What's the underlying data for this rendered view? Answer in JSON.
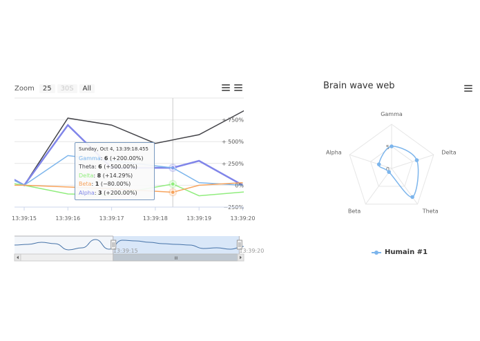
{
  "range_selector": {
    "label": "Zoom",
    "buttons": [
      {
        "label": "25",
        "disabled": false
      },
      {
        "label": "30S",
        "disabled": true
      },
      {
        "label": "All",
        "disabled": false
      }
    ]
  },
  "radar_title": "Brain wave web",
  "tooltip": {
    "title": "Sunday, Oct 4, 13:39:18.455",
    "rows": [
      {
        "name": "Gamma",
        "value": "6",
        "change": "(+200.00%)",
        "color": "#7cb5ec"
      },
      {
        "name": "Theta",
        "value": "6",
        "change": "(+500.00%)",
        "color": "#434348"
      },
      {
        "name": "Delta",
        "value": "8",
        "change": "(+14.29%)",
        "color": "#90ed7d"
      },
      {
        "name": "Beta",
        "value": "1",
        "change": "(−80.00%)",
        "color": "#f7a35c"
      },
      {
        "name": "Alpha",
        "value": "3",
        "change": "(+200.00%)",
        "color": "#8085e9"
      }
    ]
  },
  "navigator": {
    "scrollbar_grip": "III",
    "series_values": [
      0.5,
      0.55,
      0.7,
      0.6,
      0.15,
      0.3,
      0.9,
      0.2,
      0.85,
      0.8,
      0.7,
      0.6,
      0.55,
      0.5,
      0.25,
      0.3,
      0.2,
      0.4
    ],
    "selected_range": [
      0.43,
      0.98
    ],
    "labels": [
      {
        "text": "13:39:15",
        "pos": 0.43
      },
      {
        "text": "13:39:20",
        "pos": 0.98
      }
    ]
  },
  "chart_data": [
    {
      "type": "line",
      "compare": "percent",
      "x_ticks": [
        "13:39:15",
        "13:39:16",
        "13:39:17",
        "13:39:18",
        "13:39:19",
        "13:39:20"
      ],
      "y_ticks": [
        "+ 750%",
        "+ 500%",
        "+ 250%",
        "0%",
        "−250%"
      ],
      "y_tick_values": [
        750,
        500,
        250,
        0,
        -250
      ],
      "ylim": [
        -250,
        1000
      ],
      "xlim": [
        -0.25,
        5.2
      ],
      "hover_x": 3.4,
      "series": [
        {
          "name": "Theta",
          "color": "#434348",
          "x": [
            0,
            1,
            2,
            3,
            4,
            5.2
          ],
          "y": [
            0,
            770,
            690,
            480,
            580,
            900
          ]
        },
        {
          "name": "Alpha",
          "color": "#8085e9",
          "width": 2.5,
          "x": [
            -0.25,
            0,
            1,
            2,
            3.4,
            4,
            5
          ],
          "y": [
            70,
            0,
            690,
            200,
            200,
            280,
            0
          ],
          "hover_y": 200
        },
        {
          "name": "Gamma",
          "color": "#7cb5ec",
          "x": [
            -0.25,
            0,
            1,
            2,
            3.4,
            4,
            5
          ],
          "y": [
            60,
            0,
            340,
            280,
            200,
            30,
            0
          ]
        },
        {
          "name": "Delta",
          "color": "#90ed7d",
          "x": [
            -0.25,
            0,
            1,
            2,
            3.4,
            4,
            5.2
          ],
          "y": [
            20,
            0,
            -100,
            -110,
            14,
            -120,
            -70
          ],
          "hover_y": 14
        },
        {
          "name": "Beta",
          "color": "#f7a35c",
          "x": [
            -0.25,
            0,
            1,
            2,
            3.4,
            4,
            5
          ],
          "y": [
            0,
            0,
            -20,
            -40,
            -80,
            0,
            30
          ],
          "hover_y": -80
        }
      ]
    },
    {
      "type": "radar",
      "categories": [
        "Gamma",
        "Delta",
        "Theta",
        "Beta",
        "Alpha"
      ],
      "y_tick_labels": [
        "0",
        "5"
      ],
      "ylim": [
        0,
        10
      ],
      "series": [
        {
          "name": "Humain #1",
          "color": "#7cb5ec",
          "values": [
            5,
            6,
            8,
            1,
            3
          ]
        }
      ]
    }
  ]
}
